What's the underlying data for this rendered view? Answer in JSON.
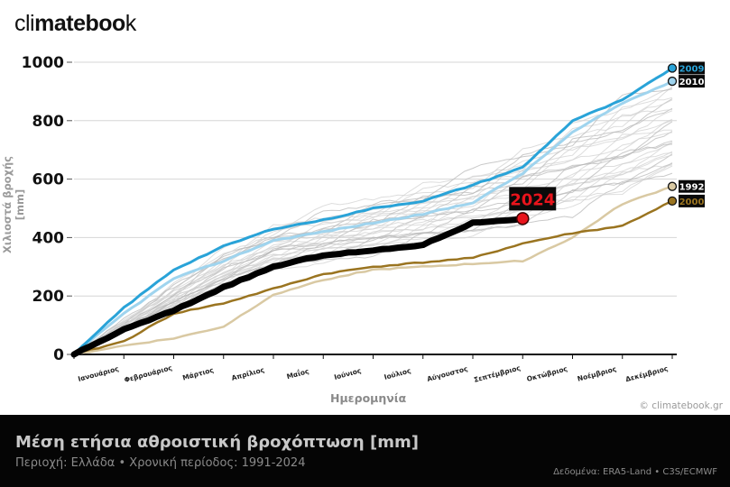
{
  "brand": {
    "logo_light_1": "cli",
    "logo_bold": "mateboo",
    "logo_light_2": "k"
  },
  "credit": "© climatebook.gr",
  "footer": {
    "title": "Μέση ετήσια αθροιστική βροχόπτωση [mm]",
    "subtitle": "Περιοχή: Ελλάδα • Χρονική περίοδος: 1991-2024",
    "source": "Δεδομένα: ERA5-Land • C3S/ECMWF"
  },
  "colors": {
    "y2009": "#29a3d8",
    "y2010": "#9fd4ee",
    "y1992": "#d9c9a3",
    "y2000": "#9a7420",
    "y2024": "#000000",
    "marker2024": "#e8141c",
    "grey": "#c4c4c4"
  },
  "chart_data": {
    "type": "line",
    "title": "Μέση ετήσια αθροιστική βροχόπτωση [mm]",
    "xlabel": "Ημερομηνία",
    "ylabel": "Χιλιοστά βροχής [mm]",
    "ylim": [
      0,
      1000
    ],
    "yticks": [
      0,
      200,
      400,
      600,
      800,
      1000
    ],
    "grid": true,
    "x_tick_labels": [
      "Ιανουάριος",
      "Φεβρουάριος",
      "Μάρτιος",
      "Απρίλιος",
      "Μαΐος",
      "Ιούνιος",
      "Ιούλιος",
      "Αύγουστος",
      "Σεπτέμβριος",
      "Οκτώβριος",
      "Νοέμβριος",
      "Δεκέμβριος"
    ],
    "x": [
      0,
      1,
      2,
      3,
      4,
      5,
      6,
      7,
      8,
      9,
      10,
      11,
      12
    ],
    "series": [
      {
        "name": "2009",
        "highlight": true,
        "values": [
          0,
          160,
          290,
          370,
          430,
          460,
          500,
          525,
          580,
          640,
          800,
          870,
          980
        ]
      },
      {
        "name": "2010",
        "highlight": true,
        "values": [
          0,
          140,
          260,
          320,
          390,
          420,
          450,
          480,
          520,
          620,
          760,
          860,
          935
        ]
      },
      {
        "name": "1992",
        "highlight": true,
        "values": [
          0,
          30,
          55,
          95,
          205,
          255,
          290,
          300,
          310,
          320,
          400,
          515,
          575
        ]
      },
      {
        "name": "2000",
        "highlight": true,
        "values": [
          0,
          45,
          140,
          175,
          225,
          275,
          300,
          315,
          330,
          380,
          415,
          440,
          525
        ]
      },
      {
        "name": "2024",
        "highlight": true,
        "values": [
          0,
          85,
          150,
          230,
          300,
          340,
          355,
          375,
          450,
          465
        ]
      }
    ],
    "end_labels": [
      "2009",
      "2010",
      "1992",
      "2000"
    ],
    "annotation": "2024",
    "grey_background_lines": "other years 1991-2023"
  }
}
